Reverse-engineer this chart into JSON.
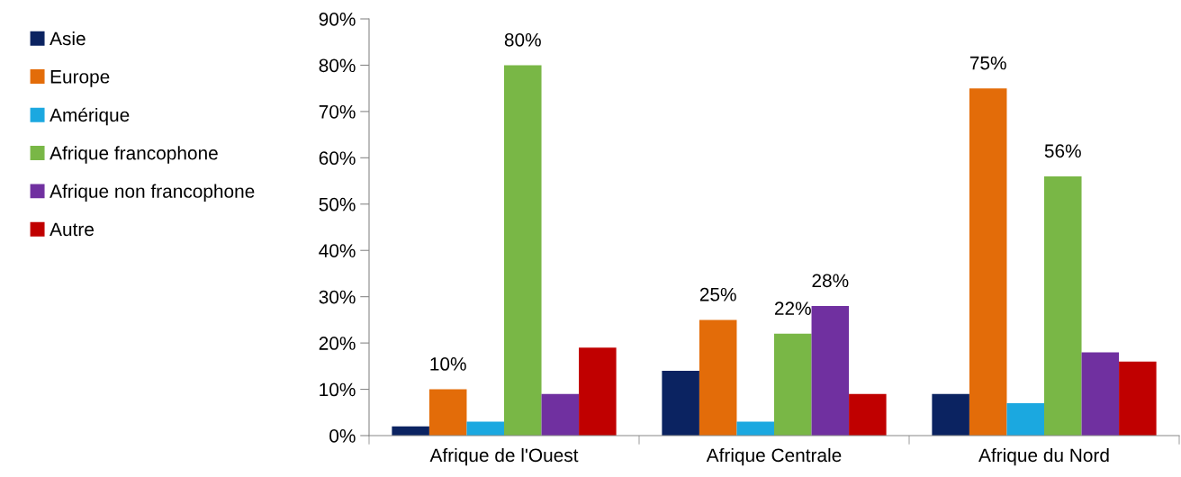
{
  "chart_data": {
    "type": "bar",
    "categories": [
      "Afrique de l'Ouest",
      "Afrique Centrale",
      "Afrique du Nord"
    ],
    "series": [
      {
        "name": "Asie",
        "color": "#0b2361",
        "values": [
          2,
          14,
          9
        ],
        "value_labels": [
          null,
          null,
          null
        ]
      },
      {
        "name": "Europe",
        "color": "#e36c09",
        "values": [
          10,
          25,
          75
        ],
        "value_labels": [
          "10%",
          "25%",
          "75%"
        ]
      },
      {
        "name": "Amérique",
        "color": "#1ba8e0",
        "values": [
          3,
          3,
          7
        ],
        "value_labels": [
          null,
          null,
          null
        ]
      },
      {
        "name": "Afrique francophone",
        "color": "#79b746",
        "values": [
          80,
          22,
          56
        ],
        "value_labels": [
          "80%",
          "22%",
          "56%"
        ]
      },
      {
        "name": "Afrique non francophone",
        "color": "#7030a0",
        "values": [
          9,
          28,
          18
        ],
        "value_labels": [
          null,
          "28%",
          null
        ]
      },
      {
        "name": "Autre",
        "color": "#c00000",
        "values": [
          19,
          9,
          16
        ],
        "value_labels": [
          null,
          null,
          null
        ]
      }
    ],
    "ylim": [
      0,
      90
    ],
    "yticks": [
      {
        "value": 0,
        "label": "0%"
      },
      {
        "value": 10,
        "label": "10%"
      },
      {
        "value": 20,
        "label": "20%"
      },
      {
        "value": 30,
        "label": "30%"
      },
      {
        "value": 40,
        "label": "40%"
      },
      {
        "value": 50,
        "label": "50%"
      },
      {
        "value": 60,
        "label": "60%"
      },
      {
        "value": 70,
        "label": "70%"
      },
      {
        "value": 80,
        "label": "80%"
      },
      {
        "value": 90,
        "label": "90%"
      }
    ],
    "grid": false,
    "legend": "left"
  }
}
